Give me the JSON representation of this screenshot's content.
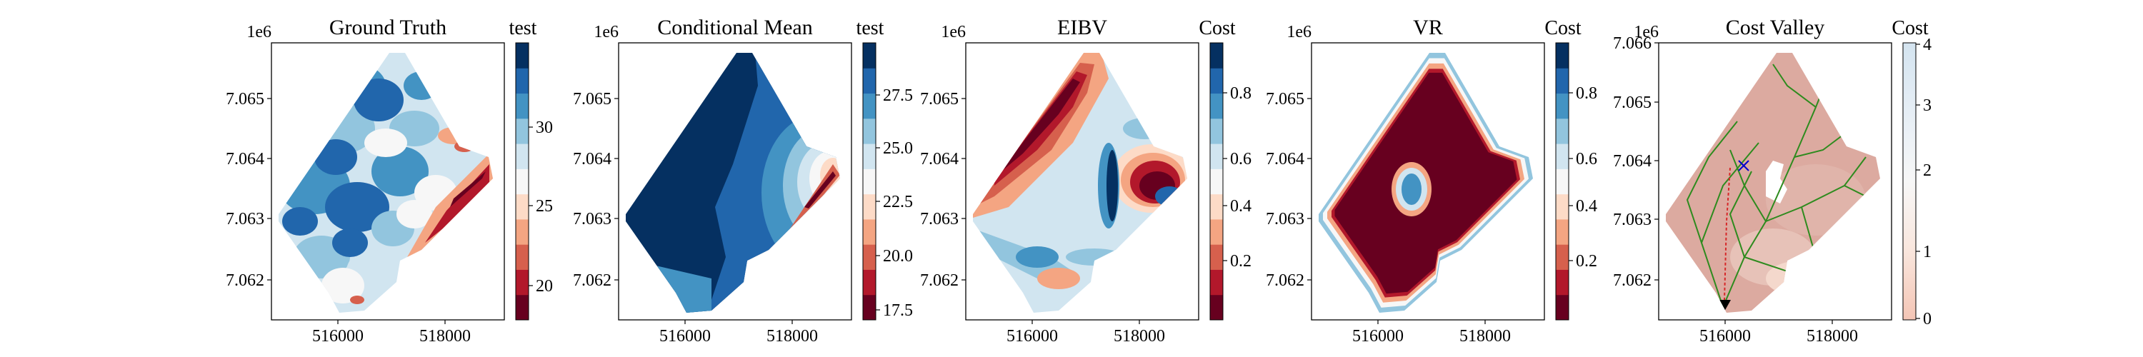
{
  "figure": {
    "panels": [
      {
        "title": "Ground Truth",
        "offset_label": "1e6",
        "cbar_label": "test",
        "x_ticks": [
          "516000",
          "518000"
        ],
        "y_ticks": [
          "7.065",
          "7.064",
          "7.063",
          "7.062"
        ],
        "cbar_ticks": [
          "30",
          "25",
          "20"
        ],
        "cbar_colors": [
          "#67001f",
          "#b2182b",
          "#d6604d",
          "#f4a582",
          "#fddbc7",
          "#f7f7f7",
          "#d1e5f0",
          "#92c5de",
          "#4393c3",
          "#2166ac",
          "#053061"
        ]
      },
      {
        "title": "Conditional Mean",
        "offset_label": "1e6",
        "cbar_label": "test",
        "x_ticks": [
          "516000",
          "518000"
        ],
        "y_ticks": [
          "7.065",
          "7.064",
          "7.063",
          "7.062"
        ],
        "cbar_ticks": [
          "27.5",
          "25.0",
          "22.5",
          "20.0",
          "17.5"
        ],
        "cbar_colors": [
          "#67001f",
          "#b2182b",
          "#d6604d",
          "#f4a582",
          "#fddbc7",
          "#f7f7f7",
          "#d1e5f0",
          "#92c5de",
          "#4393c3",
          "#2166ac",
          "#053061"
        ]
      },
      {
        "title": "EIBV",
        "offset_label": "1e6",
        "cbar_label": "Cost",
        "x_ticks": [
          "516000",
          "518000"
        ],
        "y_ticks": [
          "7.065",
          "7.064",
          "7.063",
          "7.062"
        ],
        "cbar_ticks": [
          "0.8",
          "0.6",
          "0.4",
          "0.2"
        ],
        "cbar_colors": [
          "#67001f",
          "#b2182b",
          "#d6604d",
          "#f4a582",
          "#fddbc7",
          "#f7f7f7",
          "#d1e5f0",
          "#92c5de",
          "#4393c3",
          "#2166ac",
          "#053061"
        ]
      },
      {
        "title": "VR",
        "offset_label": "1e6",
        "cbar_label": "Cost",
        "x_ticks": [
          "516000",
          "518000"
        ],
        "y_ticks": [
          "7.065",
          "7.064",
          "7.063",
          "7.062"
        ],
        "cbar_ticks": [
          "0.8",
          "0.6",
          "0.4",
          "0.2"
        ],
        "cbar_colors": [
          "#67001f",
          "#b2182b",
          "#d6604d",
          "#f4a582",
          "#fddbc7",
          "#f7f7f7",
          "#d1e5f0",
          "#92c5de",
          "#4393c3",
          "#2166ac",
          "#053061"
        ]
      },
      {
        "title": "Cost Valley",
        "offset_label": "1e6",
        "cbar_label": "Cost",
        "x_ticks": [
          "516000",
          "518000"
        ],
        "y_ticks": [
          "7.066",
          "7.065",
          "7.064",
          "7.063",
          "7.062"
        ],
        "cbar_ticks": [
          "4",
          "3",
          "2",
          "1",
          "0"
        ]
      }
    ]
  },
  "chart_data": [
    {
      "type": "heatmap",
      "title": "Ground Truth",
      "colorbar_label": "test",
      "xlim": [
        514800,
        519300
      ],
      "ylim": [
        7061500,
        7065800
      ],
      "colorbar_range": [
        18.5,
        34
      ],
      "colormap": "RdBu (11 levels)"
    },
    {
      "type": "heatmap",
      "title": "Conditional Mean",
      "colorbar_label": "test",
      "xlim": [
        514800,
        519300
      ],
      "ylim": [
        7061500,
        7065800
      ],
      "colorbar_range": [
        17,
        29.5
      ],
      "colormap": "RdBu (11 levels)"
    },
    {
      "type": "heatmap",
      "title": "EIBV",
      "colorbar_label": "Cost",
      "xlim": [
        514800,
        519300
      ],
      "ylim": [
        7061500,
        7065800
      ],
      "colorbar_range": [
        0,
        1
      ],
      "colormap": "RdBu (11 levels)"
    },
    {
      "type": "heatmap",
      "title": "VR",
      "colorbar_label": "Cost",
      "xlim": [
        514800,
        519300
      ],
      "ylim": [
        7061500,
        7065800
      ],
      "colorbar_range": [
        0,
        1
      ],
      "colormap": "RdBu (11 levels)"
    },
    {
      "type": "heatmap",
      "title": "Cost Valley",
      "colorbar_label": "Cost",
      "xlim": [
        514800,
        519300
      ],
      "ylim": [
        7061500,
        7066000
      ],
      "colorbar_range": [
        0,
        4
      ],
      "colormap": "RdBu continuous",
      "colors": {
        "tree": "#2e8b1e",
        "path": "#d62728",
        "start": "#000000",
        "target": "#0000cc"
      }
    }
  ]
}
